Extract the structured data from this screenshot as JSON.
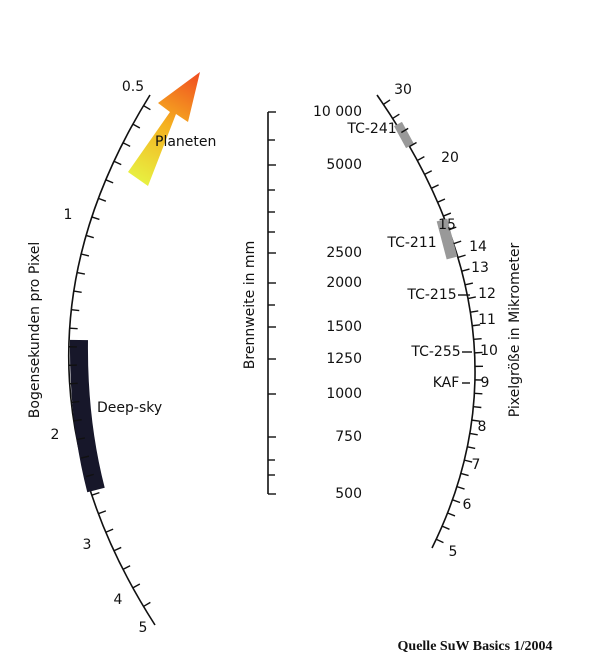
{
  "left_scale": {
    "label": "Bogensekunden pro Pixel",
    "ticks": [
      "0.5",
      "1",
      "2",
      "3",
      "4",
      "5"
    ],
    "bands": [
      "Planeten",
      "Deep-sky"
    ]
  },
  "middle_scale": {
    "label": "Brennweite in mm",
    "ticks": [
      "10 000",
      "5000",
      "2500",
      "2000",
      "1500",
      "1250",
      "1000",
      "750",
      "500"
    ]
  },
  "right_scale": {
    "label": "Pixelgröße in Mikrometer",
    "ticks": [
      "30",
      "20",
      "15",
      "14",
      "13",
      "12",
      "11",
      "10",
      "9",
      "8",
      "7",
      "6",
      "5"
    ],
    "cameras": [
      "TC-241",
      "TC-211",
      "TC-215",
      "TC-255",
      "KAF"
    ]
  },
  "source": "Quelle SuW Basics 1/2004"
}
